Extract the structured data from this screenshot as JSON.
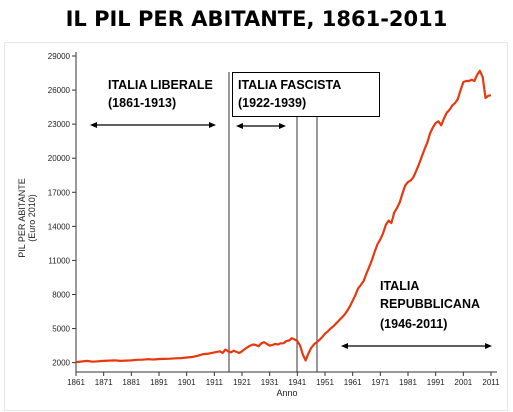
{
  "slide_title": "IL PIL PER ABITANTE, 1861-2011",
  "chart_data": {
    "type": "line",
    "title": "IL PIL PER ABITANTE, 1861-2011",
    "xlabel": "Anno",
    "ylabel": "PIL PER ABITANTE",
    "ylabel_unit": "(Euro 2010)",
    "xlim": [
      1861,
      2011
    ],
    "ylim": [
      1000,
      29000
    ],
    "x_ticks": [
      1861,
      1871,
      1881,
      1891,
      1901,
      1911,
      1921,
      1931,
      1941,
      1951,
      1961,
      1971,
      1981,
      1991,
      2001,
      2011
    ],
    "y_ticks": [
      2000,
      5000,
      8000,
      11000,
      14000,
      17000,
      20000,
      23000,
      26000,
      29000
    ],
    "y_tick_labels": [
      "2000",
      "5000",
      "8000",
      "11000",
      "14000",
      "17000",
      "20000",
      "23000",
      "26000",
      "29000"
    ],
    "grid": false,
    "line_color": "#e8380d",
    "series": [
      {
        "x": [
          1861,
          1863,
          1865,
          1867,
          1869,
          1871,
          1873,
          1875,
          1877,
          1879,
          1881,
          1883,
          1885,
          1887,
          1889,
          1891,
          1893,
          1895,
          1897,
          1899,
          1901,
          1903,
          1905,
          1907,
          1909,
          1911,
          1913,
          1914,
          1915,
          1916,
          1917,
          1918,
          1919,
          1920,
          1921,
          1922,
          1923,
          1924,
          1925,
          1926,
          1927,
          1928,
          1929,
          1930,
          1931,
          1932,
          1933,
          1934,
          1935,
          1936,
          1937,
          1938,
          1939,
          1940,
          1941,
          1942,
          1943,
          1944,
          1945,
          1946,
          1947,
          1948,
          1949,
          1950,
          1951,
          1952,
          1953,
          1954,
          1955,
          1956,
          1957,
          1958,
          1959,
          1960,
          1961,
          1962,
          1963,
          1964,
          1965,
          1966,
          1967,
          1968,
          1969,
          1970,
          1971,
          1972,
          1973,
          1974,
          1975,
          1976,
          1977,
          1978,
          1979,
          1980,
          1981,
          1982,
          1983,
          1984,
          1985,
          1986,
          1987,
          1988,
          1989,
          1990,
          1991,
          1992,
          1993,
          1994,
          1995,
          1996,
          1997,
          1998,
          1999,
          2000,
          2001,
          2002,
          2003,
          2004,
          2005,
          2006,
          2007,
          2008,
          2009,
          2010,
          2011
        ],
        "y": [
          2050,
          2100,
          2150,
          2080,
          2120,
          2150,
          2180,
          2200,
          2150,
          2180,
          2200,
          2250,
          2260,
          2300,
          2280,
          2320,
          2330,
          2350,
          2380,
          2400,
          2450,
          2500,
          2600,
          2750,
          2800,
          2900,
          3000,
          2850,
          3150,
          3000,
          2900,
          3050,
          2950,
          2850,
          3000,
          3200,
          3350,
          3500,
          3600,
          3550,
          3450,
          3700,
          3800,
          3650,
          3500,
          3550,
          3650,
          3600,
          3700,
          3700,
          3900,
          3950,
          4150,
          4050,
          3900,
          3500,
          2700,
          2200,
          2800,
          3300,
          3600,
          3800,
          4000,
          4250,
          4550,
          4750,
          5000,
          5200,
          5450,
          5700,
          5950,
          6200,
          6550,
          6950,
          7450,
          7950,
          8550,
          8850,
          9200,
          9850,
          10450,
          11050,
          11800,
          12450,
          12850,
          13400,
          14150,
          14500,
          14300,
          15200,
          15600,
          16100,
          16900,
          17600,
          17900,
          18050,
          18350,
          18900,
          19500,
          20150,
          20800,
          21400,
          22200,
          22700,
          23100,
          23250,
          22900,
          23500,
          24000,
          24250,
          24650,
          24850,
          25200,
          26000,
          26700,
          26800,
          26800,
          26900,
          26800,
          27350,
          27700,
          27150,
          25300,
          25500,
          25550
        ]
      }
    ],
    "annotations": [
      {
        "lines": [
          "ITALIA LIBERALE",
          "(1861-1913)"
        ],
        "boxed": false
      },
      {
        "lines": [
          "ITALIA FASCISTA",
          "(1922-1939)"
        ],
        "boxed": true
      },
      {
        "lines": [
          "ITALIA",
          "REPUBBLICANA",
          "(1946-2011)"
        ],
        "boxed": false
      }
    ]
  }
}
